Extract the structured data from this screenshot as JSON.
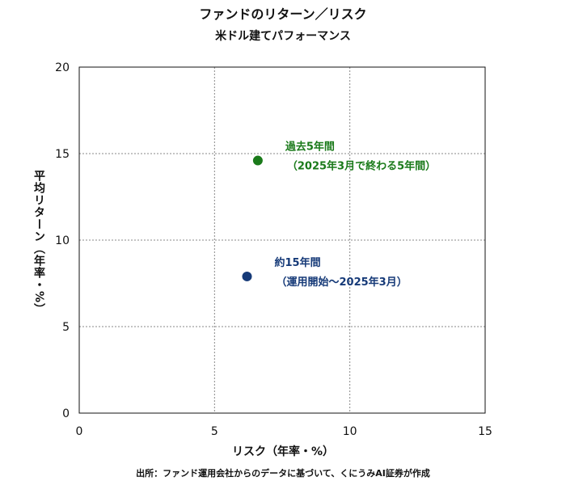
{
  "header": {
    "title": "ファンドのリターン／リスク",
    "subtitle": "米ドル建てパフォーマンス"
  },
  "footer": {
    "source": "出所：ファンド運用会社からのデータに基づいて、くにうみAI証券が作成"
  },
  "chart_data": {
    "type": "scatter",
    "xlabel": "リスク（年率・%）",
    "ylabel": "平均リターン（年率・%）",
    "xlim": [
      0,
      15
    ],
    "ylim": [
      0,
      20
    ],
    "xticks": [
      0,
      5,
      10,
      15
    ],
    "yticks": [
      0,
      5,
      10,
      15,
      20
    ],
    "grid": true,
    "points": [
      {
        "x": 6.6,
        "y": 14.6,
        "color": "#1a7a1a",
        "label_line1": "過去5年間",
        "label_line2": "（2025年3月で終わる5年間）"
      },
      {
        "x": 6.2,
        "y": 7.9,
        "color": "#163a78",
        "label_line1": "約15年間",
        "label_line2": "（運用開始～2025年3月）"
      }
    ]
  }
}
